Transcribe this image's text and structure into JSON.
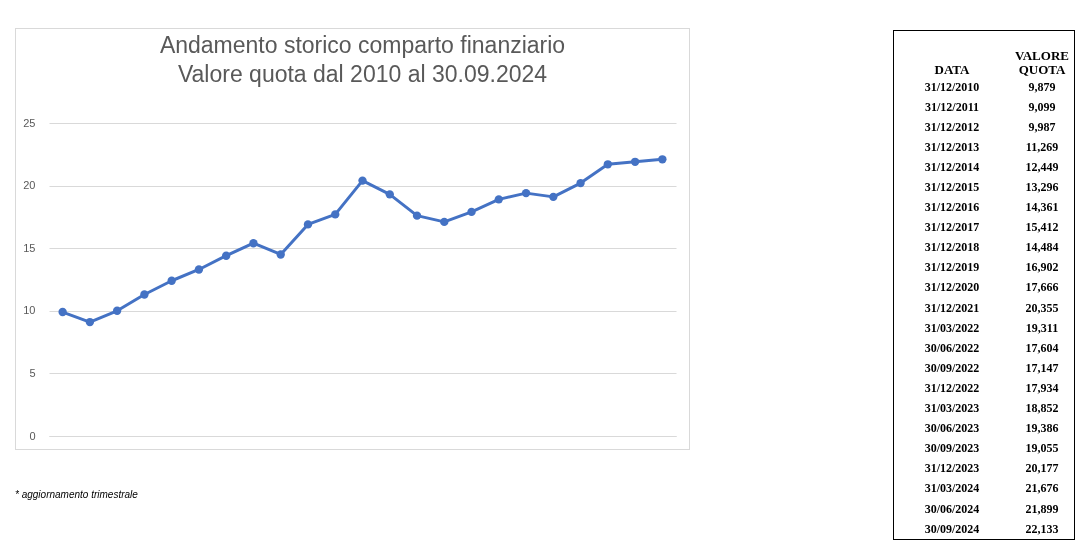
{
  "chart_data": [
    {
      "type": "line",
      "title": "Andamento storico comparto finanziario",
      "subtitle": "Valore quota dal 2010 al 30.09.2024",
      "categories": [
        null,
        null,
        null,
        null,
        null,
        null,
        null,
        null,
        null,
        null,
        null,
        null,
        null,
        null,
        null,
        null,
        null,
        null,
        null,
        null,
        null,
        null,
        null
      ],
      "series": [
        {
          "color": "#4472c4",
          "values": [
            9.9,
            9.1,
            10.0,
            11.3,
            12.4,
            13.3,
            14.4,
            15.4,
            14.5,
            16.9,
            17.7,
            20.4,
            19.3,
            17.6,
            17.1,
            17.9,
            18.9,
            19.4,
            19.1,
            20.2,
            21.7,
            21.9,
            22.1
          ]
        }
      ],
      "ylim": [
        0,
        25
      ],
      "yticks": [
        0,
        5,
        10,
        15,
        20,
        25
      ],
      "grid": "y",
      "tick_labels": "y",
      "marker": "circle",
      "line_style": "solid",
      "annotations": [
        "* aggiornamento trimestrale"
      ]
    },
    {
      "type": "other",
      "annotations": [
        "DATA",
        "VALORE QUOTA",
        "31/12/2010",
        "9,879",
        "31/12/2011",
        "9,099",
        "31/12/2012",
        "9,987",
        "31/12/2013",
        "11,269",
        "31/12/2014",
        "12,449",
        "31/12/2015",
        "13,296",
        "31/12/2016",
        "14,361",
        "31/12/2017",
        "15,412",
        "31/12/2018",
        "14,484",
        "31/12/2019",
        "16,902",
        "31/12/2020",
        "17,666",
        "31/12/2021",
        "20,355",
        "31/03/2022",
        "19,311",
        "30/06/2022",
        "17,604",
        "30/09/2022",
        "17,147",
        "31/12/2022",
        "17,934",
        "31/03/2023",
        "18,852",
        "30/06/2023",
        "19,386",
        "30/09/2023",
        "19,055",
        "31/12/2023",
        "20,177",
        "31/03/2024",
        "21,676",
        "30/06/2024",
        "21,899",
        "30/09/2024",
        "22,133"
      ]
    }
  ]
}
